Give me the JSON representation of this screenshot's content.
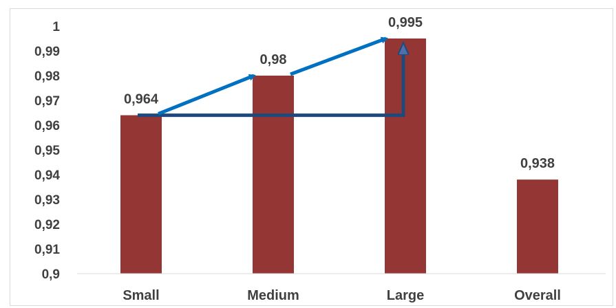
{
  "chart_data": {
    "type": "bar",
    "categories": [
      "Small",
      "Medium",
      "Large",
      "Overall"
    ],
    "values": [
      0.964,
      0.98,
      0.995,
      0.938
    ],
    "data_labels": [
      "0,964",
      "0,98",
      "0,995",
      "0,938"
    ],
    "ylim": [
      0.9,
      1.0
    ],
    "yticks": [
      0.9,
      0.91,
      0.92,
      0.93,
      0.94,
      0.95,
      0.96,
      0.97,
      0.98,
      0.99,
      1.0
    ],
    "ytick_labels": [
      "0,9",
      "0,91",
      "0,92",
      "0,93",
      "0,94",
      "0,95",
      "0,96",
      "0,97",
      "0,98",
      "0,99",
      "1"
    ],
    "title": "",
    "xlabel": "",
    "ylabel": "",
    "grid": false,
    "bar_color": "#943634",
    "annotations": {
      "trend_arrows": {
        "color": "#0070c0",
        "description": "arrows from Small to Medium to Large",
        "from_categories": [
          [
            "Small",
            "Medium"
          ],
          [
            "Medium",
            "Large"
          ]
        ]
      },
      "gain_bracket": {
        "color": "#1f497d",
        "from_category": "Small",
        "to_category": "Large",
        "from_value": 0.964,
        "to_value": 0.995
      }
    }
  }
}
